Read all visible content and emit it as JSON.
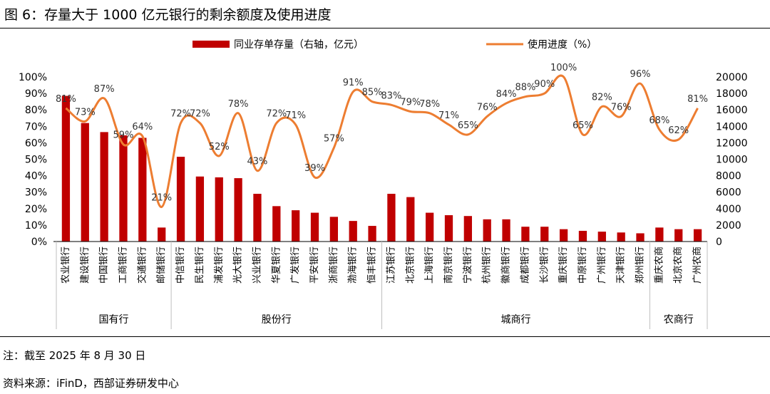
{
  "page": {
    "title": "图 6：存量大于 1000 亿元银行的剩余额度及使用进度",
    "note": "注：截至 2025 年 8 月 30 日",
    "source": "资料来源：iFinD，西部证券研发中心"
  },
  "colors": {
    "bar": "#C00000",
    "line": "#ED7D31",
    "axis": "#000000",
    "text": "#000000",
    "group_sep": "#BFBFBF"
  },
  "chart_data": {
    "type": "bar",
    "title": "",
    "categories": [
      "农业银行",
      "建设银行",
      "中国银行",
      "工商银行",
      "交通银行",
      "邮储银行",
      "中信银行",
      "民生银行",
      "浦发银行",
      "光大银行",
      "兴业银行",
      "华夏银行",
      "广发银行",
      "平安银行",
      "浙商银行",
      "渤海银行",
      "恒丰银行",
      "江苏银行",
      "北京银行",
      "上海银行",
      "南京银行",
      "宁波银行",
      "杭州银行",
      "徽商银行",
      "成都银行",
      "长沙银行",
      "重庆银行",
      "中原银行",
      "广州银行",
      "天津银行",
      "郑州银行",
      "重庆农商",
      "北京农商",
      "广州农商"
    ],
    "groups": [
      {
        "name": "国有行",
        "start": 0,
        "end": 5
      },
      {
        "name": "股份行",
        "start": 6,
        "end": 16
      },
      {
        "name": "城商行",
        "start": 17,
        "end": 30
      },
      {
        "name": "农商行",
        "start": 31,
        "end": 33
      }
    ],
    "legend": [
      "同业存单存量（右轴，亿元）",
      "使用进度（%）"
    ],
    "legend_position": "top",
    "series": [
      {
        "name": "同业存单存量（右轴，亿元）",
        "type": "bar",
        "axis": "right",
        "values": [
          17700,
          14400,
          13300,
          12900,
          12600,
          1700,
          10300,
          7900,
          7800,
          7700,
          5800,
          4300,
          3800,
          3500,
          3000,
          2500,
          1900,
          5800,
          5400,
          3500,
          3200,
          3100,
          2700,
          2700,
          1800,
          1800,
          1500,
          1300,
          1200,
          1100,
          1000,
          1700,
          1500,
          1500
        ]
      },
      {
        "name": "使用进度（%）",
        "type": "line",
        "axis": "left",
        "values": [
          81,
          73,
          87,
          59,
          64,
          21,
          72,
          72,
          52,
          78,
          43,
          72,
          71,
          39,
          57,
          91,
          85,
          83,
          79,
          78,
          71,
          65,
          76,
          84,
          88,
          90,
          100,
          65,
          82,
          76,
          96,
          68,
          62,
          81
        ],
        "labels": [
          "81%",
          "73%",
          "87%",
          "59%",
          "64%",
          "21%",
          "72%",
          "72%",
          "52%",
          "78%",
          "43%",
          "72%",
          "71%",
          "39%",
          "57%",
          "91%",
          "85%",
          "83%",
          "79%",
          "78%",
          "71%",
          "65%",
          "76%",
          "84%",
          "88%",
          "90%",
          "100%",
          "65%",
          "82%",
          "76%",
          "96%",
          "68%",
          "62%",
          "81%"
        ]
      }
    ],
    "left_axis": {
      "ylim": [
        0,
        100
      ],
      "ticks": [
        "0%",
        "10%",
        "20%",
        "30%",
        "40%",
        "50%",
        "60%",
        "70%",
        "80%",
        "90%",
        "100%"
      ]
    },
    "right_axis": {
      "ylim": [
        0,
        20000
      ],
      "ticks": [
        "0",
        "2000",
        "4000",
        "6000",
        "8000",
        "10000",
        "12000",
        "14000",
        "16000",
        "18000",
        "20000"
      ]
    }
  }
}
